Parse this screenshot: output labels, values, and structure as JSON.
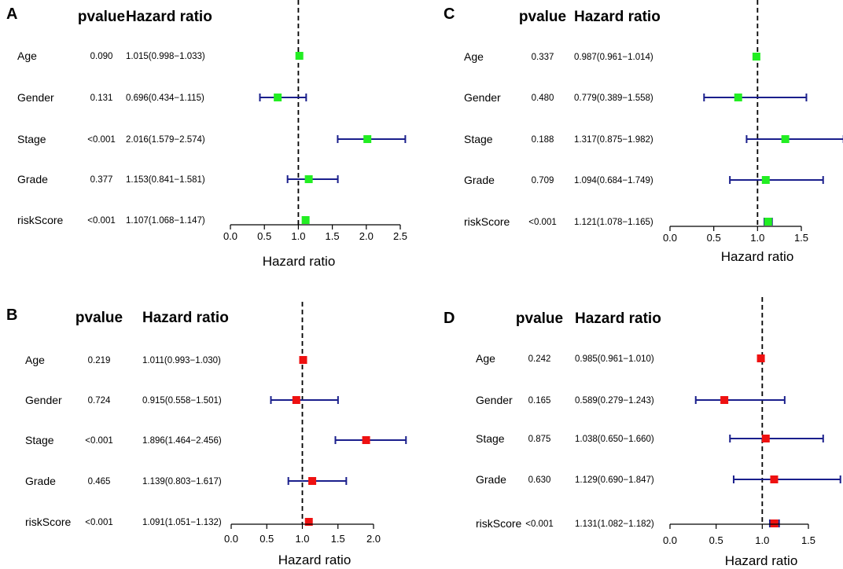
{
  "colors": {
    "ci_line": "#1a1f8c",
    "ref_line": "#000000",
    "axis": "#000000"
  },
  "chart_data": [
    {
      "panel": "A",
      "type": "forest",
      "col_pvalue": "pvalue",
      "col_hr": "Hazard ratio",
      "xlabel": "Hazard ratio",
      "ref": 1.0,
      "ticks": [
        "0.0",
        "0.5",
        "1.0",
        "1.5",
        "2.0",
        "2.5"
      ],
      "xlim": [
        0,
        2.5
      ],
      "marker_color": "#22ee22",
      "rows": [
        {
          "name": "Age",
          "pvalue": "0.090",
          "hr_text": "1.015(0.998−1.033)",
          "hr": 1.015,
          "lo": 0.998,
          "hi": 1.033
        },
        {
          "name": "Gender",
          "pvalue": "0.131",
          "hr_text": "0.696(0.434−1.115)",
          "hr": 0.696,
          "lo": 0.434,
          "hi": 1.115
        },
        {
          "name": "Stage",
          "pvalue": "<0.001",
          "hr_text": "2.016(1.579−2.574)",
          "hr": 2.016,
          "lo": 1.579,
          "hi": 2.574
        },
        {
          "name": "Grade",
          "pvalue": "0.377",
          "hr_text": "1.153(0.841−1.581)",
          "hr": 1.153,
          "lo": 0.841,
          "hi": 1.581
        },
        {
          "name": "riskScore",
          "pvalue": "<0.001",
          "hr_text": "1.107(1.068−1.147)",
          "hr": 1.107,
          "lo": 1.068,
          "hi": 1.147
        }
      ]
    },
    {
      "panel": "B",
      "type": "forest",
      "col_pvalue": "pvalue",
      "col_hr": "Hazard ratio",
      "xlabel": "Hazard ratio",
      "ref": 1.0,
      "ticks": [
        "0.0",
        "0.5",
        "1.0",
        "1.5",
        "2.0"
      ],
      "xlim": [
        0,
        2.0
      ],
      "marker_color": "#ee1111",
      "rows": [
        {
          "name": "Age",
          "pvalue": "0.219",
          "hr_text": "1.011(0.993−1.030)",
          "hr": 1.011,
          "lo": 0.993,
          "hi": 1.03
        },
        {
          "name": "Gender",
          "pvalue": "0.724",
          "hr_text": "0.915(0.558−1.501)",
          "hr": 0.915,
          "lo": 0.558,
          "hi": 1.501
        },
        {
          "name": "Stage",
          "pvalue": "<0.001",
          "hr_text": "1.896(1.464−2.456)",
          "hr": 1.896,
          "lo": 1.464,
          "hi": 2.456
        },
        {
          "name": "Grade",
          "pvalue": "0.465",
          "hr_text": "1.139(0.803−1.617)",
          "hr": 1.139,
          "lo": 0.803,
          "hi": 1.617
        },
        {
          "name": "riskScore",
          "pvalue": "<0.001",
          "hr_text": "1.091(1.051−1.132)",
          "hr": 1.091,
          "lo": 1.051,
          "hi": 1.132
        }
      ]
    },
    {
      "panel": "C",
      "type": "forest",
      "col_pvalue": "pvalue",
      "col_hr": "Hazard ratio",
      "xlabel": "Hazard ratio",
      "ref": 1.0,
      "ticks": [
        "0.0",
        "0.5",
        "1.0",
        "1.5"
      ],
      "xlim": [
        0,
        1.5
      ],
      "marker_color": "#22ee22",
      "rows": [
        {
          "name": "Age",
          "pvalue": "0.337",
          "hr_text": "0.987(0.961−1.014)",
          "hr": 0.987,
          "lo": 0.961,
          "hi": 1.014
        },
        {
          "name": "Gender",
          "pvalue": "0.480",
          "hr_text": "0.779(0.389−1.558)",
          "hr": 0.779,
          "lo": 0.389,
          "hi": 1.558
        },
        {
          "name": "Stage",
          "pvalue": "0.188",
          "hr_text": "1.317(0.875−1.982)",
          "hr": 1.317,
          "lo": 0.875,
          "hi": 1.982
        },
        {
          "name": "Grade",
          "pvalue": "0.709",
          "hr_text": "1.094(0.684−1.749)",
          "hr": 1.094,
          "lo": 0.684,
          "hi": 1.749
        },
        {
          "name": "riskScore",
          "pvalue": "<0.001",
          "hr_text": "1.121(1.078−1.165)",
          "hr": 1.121,
          "lo": 1.078,
          "hi": 1.165
        }
      ]
    },
    {
      "panel": "D",
      "type": "forest",
      "col_pvalue": "pvalue",
      "col_hr": "Hazard ratio",
      "xlabel": "Hazard ratio",
      "ref": 1.0,
      "ticks": [
        "0.0",
        "0.5",
        "1.0",
        "1.5"
      ],
      "xlim": [
        0,
        1.5
      ],
      "marker_color": "#ee1111",
      "rows": [
        {
          "name": "Age",
          "pvalue": "0.242",
          "hr_text": "0.985(0.961−1.010)",
          "hr": 0.985,
          "lo": 0.961,
          "hi": 1.01
        },
        {
          "name": "Gender",
          "pvalue": "0.165",
          "hr_text": "0.589(0.279−1.243)",
          "hr": 0.589,
          "lo": 0.279,
          "hi": 1.243
        },
        {
          "name": "Stage",
          "pvalue": "0.875",
          "hr_text": "1.038(0.650−1.660)",
          "hr": 1.038,
          "lo": 0.65,
          "hi": 1.66
        },
        {
          "name": "Grade",
          "pvalue": "0.630",
          "hr_text": "1.129(0.690−1.847)",
          "hr": 1.129,
          "lo": 0.69,
          "hi": 1.847
        },
        {
          "name": "riskScore",
          "pvalue": "<0.001",
          "hr_text": "1.131(1.082−1.182)",
          "hr": 1.131,
          "lo": 1.082,
          "hi": 1.182
        }
      ]
    }
  ]
}
